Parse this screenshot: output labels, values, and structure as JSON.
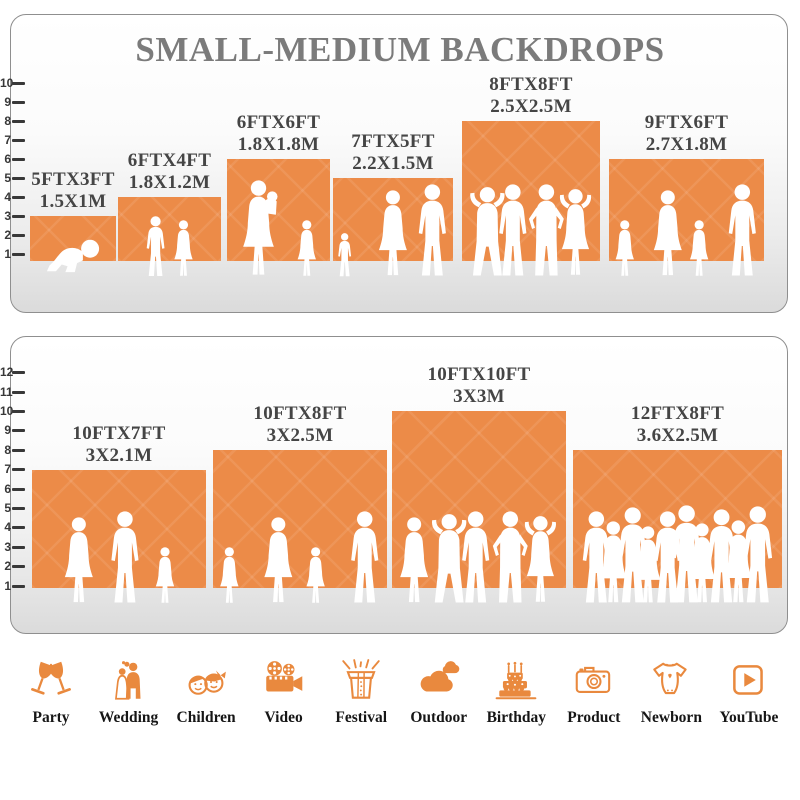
{
  "title": "SMALL-MEDIUM BACKDROPS",
  "colors": {
    "backdrop_orange": "#EC8B48",
    "icon_orange": "#E9893E",
    "title_gray": "#7B7B7B",
    "label_gray": "#454545",
    "ruler_dark": "#383838"
  },
  "panels": [
    {
      "name": "top",
      "ruler_ticks": [
        1,
        2,
        3,
        4,
        5,
        6,
        7,
        8,
        9,
        10
      ],
      "backdrops": [
        {
          "size_ft": "5FTX3FT",
          "size_m": "1.5X1M",
          "ft_w": 5,
          "ft_h": 3,
          "figures": [
            "baby"
          ]
        },
        {
          "size_ft": "6FTX4FT",
          "size_m": "1.8X1.2M",
          "ft_w": 6,
          "ft_h": 4,
          "figures": [
            "boy",
            "girl"
          ]
        },
        {
          "size_ft": "6FTX6FT",
          "size_m": "1.8X1.8M",
          "ft_w": 6,
          "ft_h": 6,
          "figures": [
            "mother-child",
            "girl"
          ]
        },
        {
          "size_ft": "7FTX5FT",
          "size_m": "2.2X1.5M",
          "ft_w": 7,
          "ft_h": 5,
          "figures": [
            "toddler",
            "woman",
            "man"
          ]
        },
        {
          "size_ft": "8FTX8FT",
          "size_m": "2.5X2.5M",
          "ft_w": 8,
          "ft_h": 8,
          "figures": [
            "man-arms-up",
            "man",
            "man-hips",
            "woman-arms-up"
          ]
        },
        {
          "size_ft": "9FTX6FT",
          "size_m": "2.7X1.8M",
          "ft_w": 9,
          "ft_h": 6,
          "figures": [
            "girl",
            "woman",
            "girl",
            "man"
          ]
        }
      ]
    },
    {
      "name": "bottom",
      "ruler_ticks": [
        1,
        2,
        3,
        4,
        5,
        6,
        7,
        8,
        9,
        10,
        11,
        12
      ],
      "backdrops": [
        {
          "size_ft": "10FTX7FT",
          "size_m": "3X2.1M",
          "ft_w": 10,
          "ft_h": 7,
          "figures": [
            "woman",
            "man",
            "girl"
          ]
        },
        {
          "size_ft": "10FTX8FT",
          "size_m": "3X2.5M",
          "ft_w": 10,
          "ft_h": 8,
          "figures": [
            "girl",
            "woman",
            "girl",
            "man"
          ]
        },
        {
          "size_ft": "10FTX10FT",
          "size_m": "3X3M",
          "ft_w": 10,
          "ft_h": 10,
          "figures": [
            "woman",
            "man-arms-up",
            "man",
            "man-hips",
            "woman-arms-up"
          ]
        },
        {
          "size_ft": "12FTX8FT",
          "size_m": "3.6X2.5M",
          "ft_w": 12,
          "ft_h": 8,
          "figures": [
            "man",
            "woman",
            "man",
            "woman",
            "man",
            "man",
            "woman",
            "man",
            "woman",
            "man"
          ]
        }
      ]
    }
  ],
  "categories": [
    {
      "label": "Party",
      "icon": "party-icon"
    },
    {
      "label": "Wedding",
      "icon": "wedding-icon"
    },
    {
      "label": "Children",
      "icon": "children-icon"
    },
    {
      "label": "Video",
      "icon": "video-icon"
    },
    {
      "label": "Festival",
      "icon": "festival-icon"
    },
    {
      "label": "Outdoor",
      "icon": "outdoor-icon"
    },
    {
      "label": "Birthday",
      "icon": "birthday-icon"
    },
    {
      "label": "Product",
      "icon": "product-icon"
    },
    {
      "label": "Newborn",
      "icon": "newborn-icon"
    },
    {
      "label": "YouTube",
      "icon": "youtube-icon"
    }
  ]
}
